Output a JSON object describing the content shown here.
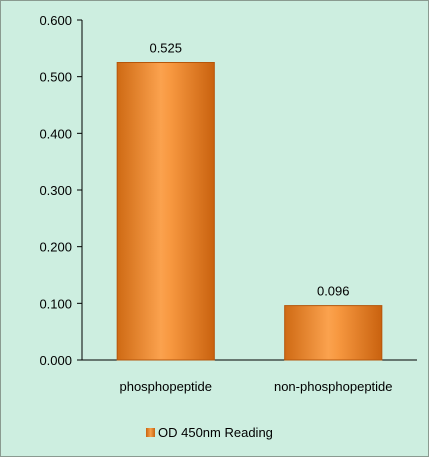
{
  "chart_data": {
    "type": "bar",
    "categories": [
      "phosphopeptide",
      "non-phosphopeptide"
    ],
    "series": [
      {
        "name": "OD 450nm Reading",
        "values": [
          0.525,
          0.096
        ]
      }
    ],
    "data_labels": [
      "0.525",
      "0.096"
    ],
    "y_ticks": [
      "0.000",
      "0.100",
      "0.200",
      "0.300",
      "0.400",
      "0.500",
      "0.600"
    ],
    "ylim": [
      0,
      0.6
    ],
    "title": "",
    "xlabel": "",
    "ylabel": "",
    "grid": false,
    "legend_position": "bottom",
    "colors": {
      "bar": "#f28c28",
      "bar_edge": "#b5560b",
      "background": "#cdeee0"
    }
  }
}
